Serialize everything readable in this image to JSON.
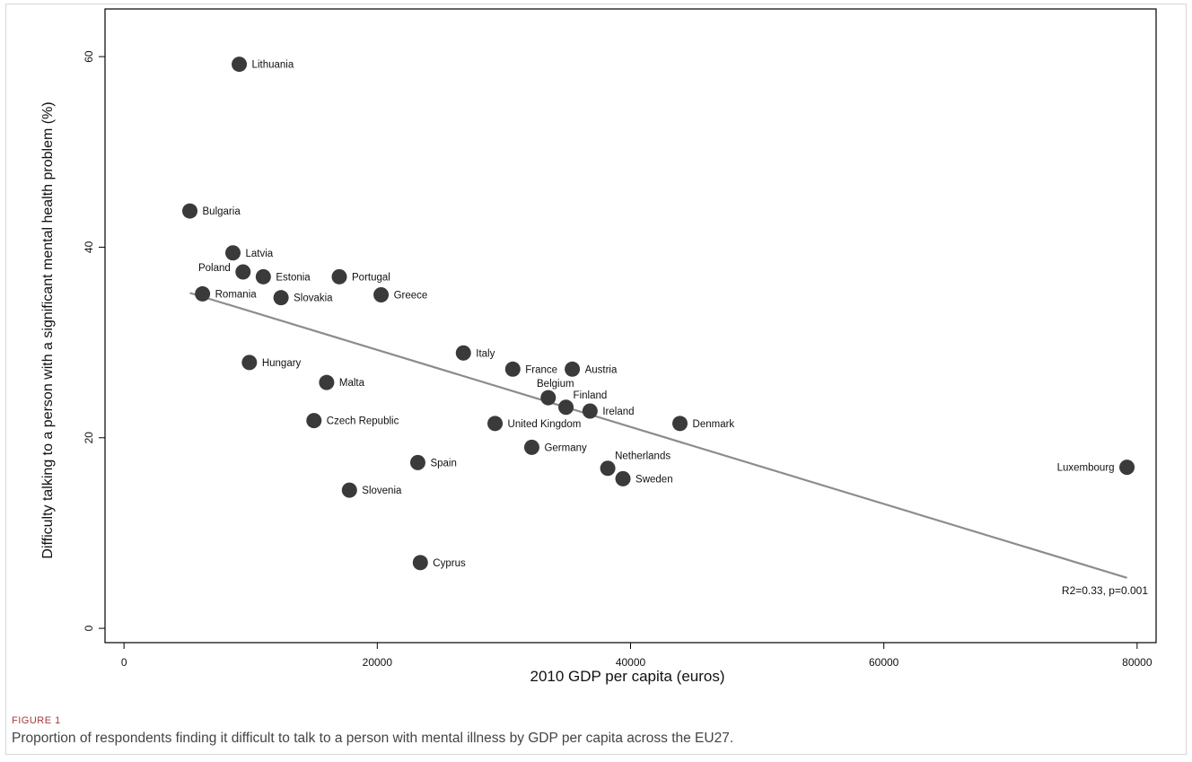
{
  "chart_data": {
    "type": "scatter",
    "xlabel": "2010 GDP per capita (euros)",
    "ylabel": "Difficulty talking to a person with a significant mental health problem (%)",
    "xlim": [
      -1500,
      81500
    ],
    "ylim": [
      -1.5,
      65
    ],
    "xticks": [
      0,
      20000,
      40000,
      60000,
      80000
    ],
    "yticks": [
      0,
      20,
      40,
      60
    ],
    "grid": false,
    "point_color": "#3a3a3a",
    "line_color": "#8c8c8c",
    "points": [
      {
        "label": "Lithuania",
        "x": 9100,
        "y": 59.2,
        "label_pos": "right"
      },
      {
        "label": "Bulgaria",
        "x": 5200,
        "y": 43.8,
        "label_pos": "right"
      },
      {
        "label": "Latvia",
        "x": 8600,
        "y": 39.4,
        "label_pos": "right"
      },
      {
        "label": "Poland",
        "x": 9400,
        "y": 37.4,
        "label_pos": "left-above"
      },
      {
        "label": "Estonia",
        "x": 11000,
        "y": 36.9,
        "label_pos": "right"
      },
      {
        "label": "Portugal",
        "x": 17000,
        "y": 36.9,
        "label_pos": "right"
      },
      {
        "label": "Romania",
        "x": 6200,
        "y": 35.1,
        "label_pos": "right"
      },
      {
        "label": "Slovakia",
        "x": 12400,
        "y": 34.7,
        "label_pos": "right"
      },
      {
        "label": "Greece",
        "x": 20300,
        "y": 35.0,
        "label_pos": "right"
      },
      {
        "label": "Italy",
        "x": 26800,
        "y": 28.9,
        "label_pos": "right"
      },
      {
        "label": "Hungary",
        "x": 9900,
        "y": 27.9,
        "label_pos": "right"
      },
      {
        "label": "France",
        "x": 30700,
        "y": 27.2,
        "label_pos": "right"
      },
      {
        "label": "Austria",
        "x": 35400,
        "y": 27.2,
        "label_pos": "right"
      },
      {
        "label": "Malta",
        "x": 16000,
        "y": 25.8,
        "label_pos": "right"
      },
      {
        "label": "Belgium",
        "x": 33500,
        "y": 24.2,
        "label_pos": "above"
      },
      {
        "label": "Finland",
        "x": 34900,
        "y": 23.2,
        "label_pos": "above-right"
      },
      {
        "label": "Ireland",
        "x": 36800,
        "y": 22.8,
        "label_pos": "right"
      },
      {
        "label": "Czech Republic",
        "x": 15000,
        "y": 21.8,
        "label_pos": "right"
      },
      {
        "label": "United Kingdom",
        "x": 29300,
        "y": 21.5,
        "label_pos": "right"
      },
      {
        "label": "Denmark",
        "x": 43900,
        "y": 21.5,
        "label_pos": "right"
      },
      {
        "label": "Germany",
        "x": 32200,
        "y": 19.0,
        "label_pos": "right"
      },
      {
        "label": "Spain",
        "x": 23200,
        "y": 17.4,
        "label_pos": "right"
      },
      {
        "label": "Netherlands",
        "x": 38200,
        "y": 16.8,
        "label_pos": "above-right"
      },
      {
        "label": "Luxembourg",
        "x": 79200,
        "y": 16.9,
        "label_pos": "left"
      },
      {
        "label": "Sweden",
        "x": 39400,
        "y": 15.7,
        "label_pos": "right"
      },
      {
        "label": "Slovenia",
        "x": 17800,
        "y": 14.5,
        "label_pos": "right"
      },
      {
        "label": "Cyprus",
        "x": 23400,
        "y": 6.9,
        "label_pos": "right"
      }
    ],
    "fit_line": {
      "x": [
        5200,
        79200
      ],
      "y": [
        35.2,
        5.3
      ]
    },
    "annotation": "R2=0.33, p=0.001"
  },
  "figure": {
    "label": "FIGURE 1",
    "caption": "Proportion of respondents finding it difficult to talk to a person with mental illness by GDP per capita across the EU27."
  }
}
